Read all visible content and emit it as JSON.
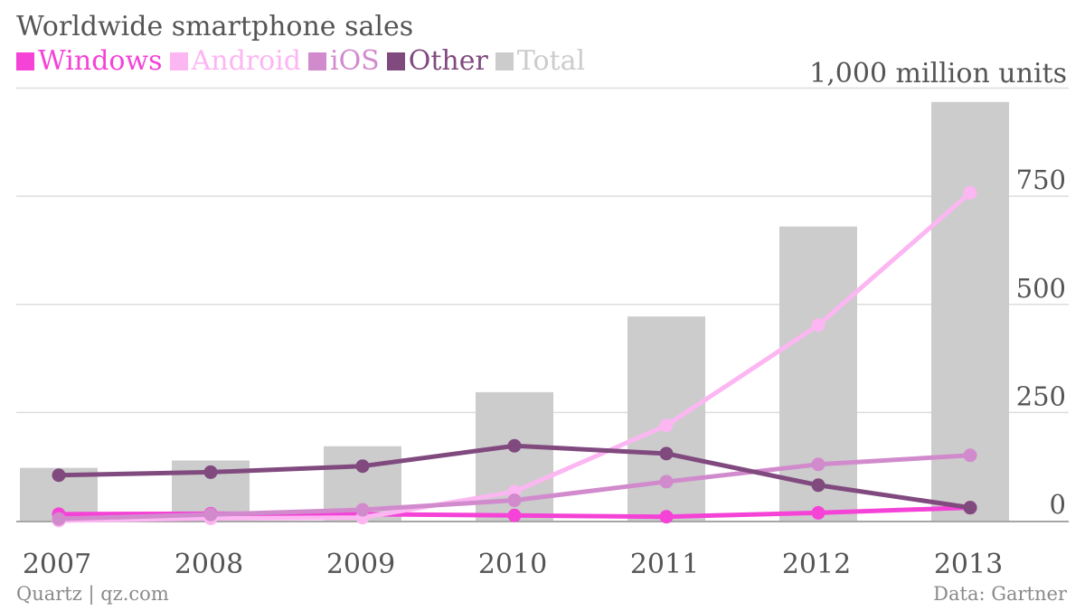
{
  "title": "Worldwide smartphone sales",
  "unit_label": "1,000 million units",
  "source_left": "Quartz | qz.com",
  "source_right": "Data: Gartner",
  "legend": [
    {
      "name": "Windows",
      "color": "#f542d7"
    },
    {
      "name": "Android",
      "color": "#fcb6f2"
    },
    {
      "name": "iOS",
      "color": "#d18bcd"
    },
    {
      "name": "Other",
      "color": "#804a7f"
    },
    {
      "name": "Total",
      "color": "#cccccc"
    }
  ],
  "chart_data": {
    "type": "bar",
    "title": "Worldwide smartphone sales",
    "ylabel": "1,000 million units",
    "categories": [
      "2007",
      "2008",
      "2009",
      "2010",
      "2011",
      "2012",
      "2013"
    ],
    "ylim": [
      0,
      1000
    ],
    "y_ticks": [
      0,
      250,
      500,
      750
    ],
    "y_tick_labels": [
      "0",
      "250",
      "500",
      "750"
    ],
    "grid": true,
    "legend_position": "top-left",
    "bars": {
      "name": "Total",
      "color": "#cccccc",
      "values": [
        122,
        139,
        172,
        297,
        472,
        680,
        968
      ]
    },
    "series": [
      {
        "name": "Windows",
        "type": "line",
        "color": "#f542d7",
        "values": [
          15,
          16,
          15,
          12,
          9,
          18,
          30
        ]
      },
      {
        "name": "Android",
        "type": "line",
        "color": "#fcb6f2",
        "values": [
          0,
          5,
          7,
          67,
          220,
          452,
          758
        ]
      },
      {
        "name": "iOS",
        "type": "line",
        "color": "#d18bcd",
        "values": [
          4,
          14,
          25,
          47,
          90,
          130,
          151
        ]
      },
      {
        "name": "Other",
        "type": "line",
        "color": "#804a7f",
        "values": [
          105,
          112,
          126,
          173,
          155,
          82,
          30
        ]
      }
    ]
  }
}
